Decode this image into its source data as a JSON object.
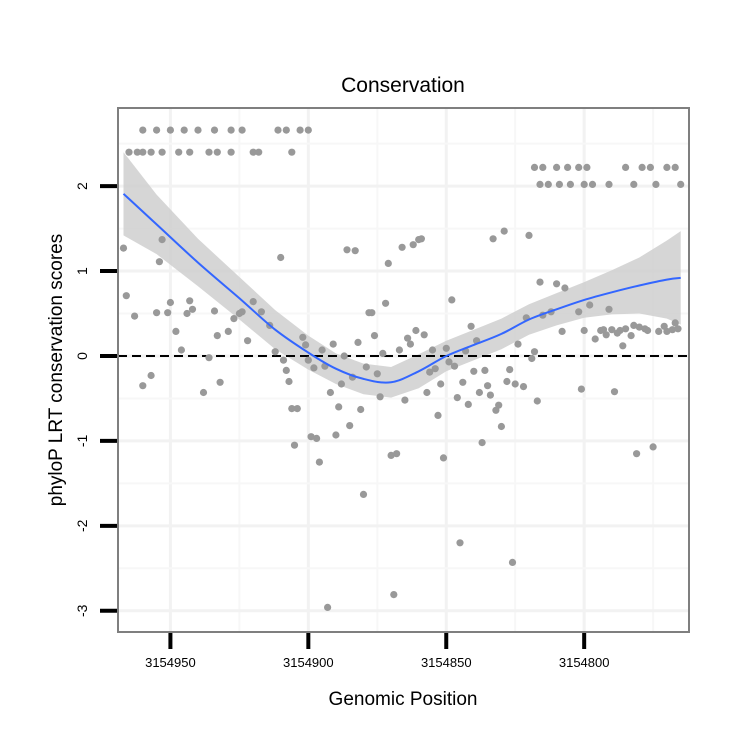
{
  "colors": {
    "panel_border": "#7f7f7f",
    "grid_major": "#f2f2f2",
    "grid_minor": "#f7f7f7",
    "point": "#999999",
    "smooth_line": "#3366ff",
    "ribbon": "#cccccc",
    "zero_line": "#000000"
  },
  "chart_data": {
    "type": "scatter",
    "title": "Conservation",
    "xlabel": "Genomic Position",
    "ylabel": "phyloP LRT conservation scores",
    "x_reversed": true,
    "xlim": [
      3154969,
      3154762
    ],
    "ylim": [
      -3.25,
      2.92
    ],
    "x_ticks": [
      3154950,
      3154900,
      3154850,
      3154800
    ],
    "x_tick_labels": [
      "3154950",
      "3154900",
      "3154850",
      "3154800"
    ],
    "y_ticks": [
      2,
      1,
      0,
      -1,
      -2,
      -3
    ],
    "y_tick_labels": [
      "2",
      "1",
      "0",
      "-1",
      "-2",
      "-3"
    ],
    "grid": true,
    "reference_line": {
      "y": 0,
      "style": "dashed"
    },
    "points": [
      [
        3154965,
        2.4
      ],
      [
        3154962,
        2.4
      ],
      [
        3154960,
        2.4
      ],
      [
        3154957,
        2.4
      ],
      [
        3154953,
        2.4
      ],
      [
        3154947,
        2.4
      ],
      [
        3154943,
        2.4
      ],
      [
        3154936,
        2.4
      ],
      [
        3154933,
        2.4
      ],
      [
        3154928,
        2.4
      ],
      [
        3154920,
        2.4
      ],
      [
        3154918,
        2.4
      ],
      [
        3154906,
        2.4
      ],
      [
        3154960,
        2.66
      ],
      [
        3154955,
        2.66
      ],
      [
        3154950,
        2.66
      ],
      [
        3154945,
        2.66
      ],
      [
        3154940,
        2.66
      ],
      [
        3154934,
        2.66
      ],
      [
        3154928,
        2.66
      ],
      [
        3154924,
        2.66
      ],
      [
        3154911,
        2.66
      ],
      [
        3154908,
        2.66
      ],
      [
        3154903,
        2.66
      ],
      [
        3154900,
        2.66
      ],
      [
        3154967,
        1.27
      ],
      [
        3154966,
        0.71
      ],
      [
        3154963,
        0.47
      ],
      [
        3154960,
        -0.35
      ],
      [
        3154957,
        -0.23
      ],
      [
        3154955,
        0.51
      ],
      [
        3154954,
        1.11
      ],
      [
        3154953,
        1.37
      ],
      [
        3154951,
        0.51
      ],
      [
        3154950,
        0.63
      ],
      [
        3154948,
        0.29
      ],
      [
        3154946,
        0.07
      ],
      [
        3154944,
        0.5
      ],
      [
        3154943,
        0.65
      ],
      [
        3154942,
        0.55
      ],
      [
        3154938,
        -0.43
      ],
      [
        3154936,
        -0.02
      ],
      [
        3154934,
        0.53
      ],
      [
        3154933,
        0.24
      ],
      [
        3154932,
        -0.31
      ],
      [
        3154929,
        0.29
      ],
      [
        3154927,
        0.44
      ],
      [
        3154925,
        0.5
      ],
      [
        3154924,
        0.52
      ],
      [
        3154922,
        0.18
      ],
      [
        3154920,
        0.64
      ],
      [
        3154917,
        0.52
      ],
      [
        3154914,
        0.36
      ],
      [
        3154912,
        0.05
      ],
      [
        3154910,
        1.16
      ],
      [
        3154909,
        -0.05
      ],
      [
        3154908,
        -0.17
      ],
      [
        3154907,
        -0.3
      ],
      [
        3154906,
        -0.62
      ],
      [
        3154905,
        -1.05
      ],
      [
        3154904,
        -0.62
      ],
      [
        3154902,
        0.22
      ],
      [
        3154901,
        0.13
      ],
      [
        3154900,
        -0.05
      ],
      [
        3154899,
        -0.95
      ],
      [
        3154898,
        -0.14
      ],
      [
        3154897,
        -0.97
      ],
      [
        3154896,
        -1.25
      ],
      [
        3154895,
        0.07
      ],
      [
        3154894,
        -0.12
      ],
      [
        3154893,
        -2.96
      ],
      [
        3154892,
        -0.43
      ],
      [
        3154891,
        0.14
      ],
      [
        3154890,
        -0.93
      ],
      [
        3154889,
        -0.6
      ],
      [
        3154888,
        -0.33
      ],
      [
        3154887,
        0.0
      ],
      [
        3154886,
        1.25
      ],
      [
        3154885,
        -0.82
      ],
      [
        3154884,
        -0.25
      ],
      [
        3154883,
        1.24
      ],
      [
        3154882,
        0.16
      ],
      [
        3154881,
        -0.63
      ],
      [
        3154880,
        -1.63
      ],
      [
        3154879,
        -0.13
      ],
      [
        3154878,
        0.51
      ],
      [
        3154877,
        0.51
      ],
      [
        3154876,
        0.24
      ],
      [
        3154875,
        -0.21
      ],
      [
        3154874,
        -0.48
      ],
      [
        3154873,
        0.03
      ],
      [
        3154872,
        0.62
      ],
      [
        3154871,
        1.09
      ],
      [
        3154870,
        -1.17
      ],
      [
        3154869,
        -2.81
      ],
      [
        3154868,
        -1.15
      ],
      [
        3154867,
        0.07
      ],
      [
        3154866,
        1.28
      ],
      [
        3154865,
        -0.52
      ],
      [
        3154864,
        0.21
      ],
      [
        3154863,
        0.14
      ],
      [
        3154862,
        1.31
      ],
      [
        3154861,
        0.3
      ],
      [
        3154860,
        1.37
      ],
      [
        3154859,
        1.38
      ],
      [
        3154858,
        0.25
      ],
      [
        3154857,
        -0.43
      ],
      [
        3154856,
        -0.19
      ],
      [
        3154855,
        0.07
      ],
      [
        3154854,
        -0.15
      ],
      [
        3154853,
        -0.7
      ],
      [
        3154852,
        -0.33
      ],
      [
        3154851,
        -1.2
      ],
      [
        3154850,
        0.09
      ],
      [
        3154849,
        -0.07
      ],
      [
        3154848,
        0.66
      ],
      [
        3154847,
        -0.12
      ],
      [
        3154846,
        -0.49
      ],
      [
        3154845,
        -2.2
      ],
      [
        3154844,
        -0.31
      ],
      [
        3154843,
        0.06
      ],
      [
        3154842,
        -0.57
      ],
      [
        3154841,
        0.35
      ],
      [
        3154840,
        -0.18
      ],
      [
        3154839,
        0.18
      ],
      [
        3154838,
        -0.43
      ],
      [
        3154837,
        -1.02
      ],
      [
        3154836,
        -0.17
      ],
      [
        3154835,
        -0.35
      ],
      [
        3154834,
        -0.46
      ],
      [
        3154833,
        1.38
      ],
      [
        3154832,
        -0.64
      ],
      [
        3154831,
        -0.58
      ],
      [
        3154830,
        -0.83
      ],
      [
        3154829,
        1.47
      ],
      [
        3154828,
        -0.3
      ],
      [
        3154827,
        -0.16
      ],
      [
        3154826,
        -2.43
      ],
      [
        3154825,
        -0.33
      ],
      [
        3154824,
        0.14
      ],
      [
        3154822,
        -0.36
      ],
      [
        3154821,
        0.45
      ],
      [
        3154820,
        1.42
      ],
      [
        3154819,
        -0.03
      ],
      [
        3154818,
        0.05
      ],
      [
        3154817,
        -0.53
      ],
      [
        3154816,
        0.87
      ],
      [
        3154815,
        0.48
      ],
      [
        3154812,
        0.52
      ],
      [
        3154810,
        0.85
      ],
      [
        3154808,
        0.29
      ],
      [
        3154807,
        0.8
      ],
      [
        3154802,
        0.52
      ],
      [
        3154801,
        -0.39
      ],
      [
        3154800,
        0.3
      ],
      [
        3154798,
        0.6
      ],
      [
        3154796,
        0.2
      ],
      [
        3154794,
        0.3
      ],
      [
        3154793,
        0.31
      ],
      [
        3154792,
        0.25
      ],
      [
        3154791,
        0.55
      ],
      [
        3154790,
        0.31
      ],
      [
        3154789,
        -0.42
      ],
      [
        3154788,
        0.27
      ],
      [
        3154787,
        0.3
      ],
      [
        3154786,
        0.12
      ],
      [
        3154785,
        0.32
      ],
      [
        3154783,
        0.24
      ],
      [
        3154782,
        0.36
      ],
      [
        3154781,
        -1.15
      ],
      [
        3154780,
        0.34
      ],
      [
        3154778,
        0.32
      ],
      [
        3154777,
        0.3
      ],
      [
        3154775,
        -1.07
      ],
      [
        3154773,
        0.29
      ],
      [
        3154771,
        0.35
      ],
      [
        3154770,
        0.29
      ],
      [
        3154768,
        0.31
      ],
      [
        3154767,
        0.39
      ],
      [
        3154766,
        0.32
      ],
      [
        3154818,
        2.22
      ],
      [
        3154815,
        2.22
      ],
      [
        3154810,
        2.22
      ],
      [
        3154806,
        2.22
      ],
      [
        3154802,
        2.22
      ],
      [
        3154799,
        2.22
      ],
      [
        3154785,
        2.22
      ],
      [
        3154779,
        2.22
      ],
      [
        3154776,
        2.22
      ],
      [
        3154770,
        2.22
      ],
      [
        3154767,
        2.22
      ],
      [
        3154816,
        2.02
      ],
      [
        3154813,
        2.02
      ],
      [
        3154809,
        2.02
      ],
      [
        3154805,
        2.02
      ],
      [
        3154800,
        2.02
      ],
      [
        3154797,
        2.02
      ],
      [
        3154791,
        2.02
      ],
      [
        3154782,
        2.02
      ],
      [
        3154774,
        2.02
      ],
      [
        3154765,
        2.02
      ]
    ],
    "smooth": {
      "label": "loess",
      "x": [
        3154967,
        3154955,
        3154940,
        3154925,
        3154912,
        3154900,
        3154890,
        3154880,
        3154870,
        3154860,
        3154850,
        3154840,
        3154830,
        3154820,
        3154810,
        3154800,
        3154790,
        3154780,
        3154770,
        3154765
      ],
      "y": [
        1.91,
        1.55,
        1.1,
        0.68,
        0.31,
        0.04,
        -0.15,
        -0.27,
        -0.31,
        -0.18,
        0.0,
        0.13,
        0.26,
        0.43,
        0.55,
        0.66,
        0.75,
        0.83,
        0.9,
        0.92
      ],
      "upper": [
        2.4,
        1.9,
        1.38,
        0.93,
        0.54,
        0.24,
        0.03,
        -0.09,
        -0.13,
        0.02,
        0.18,
        0.31,
        0.44,
        0.61,
        0.74,
        0.87,
        1.01,
        1.16,
        1.36,
        1.47
      ],
      "lower": [
        1.42,
        1.2,
        0.82,
        0.43,
        0.08,
        -0.16,
        -0.33,
        -0.45,
        -0.49,
        -0.38,
        -0.18,
        -0.05,
        0.08,
        0.25,
        0.36,
        0.45,
        0.49,
        0.5,
        0.44,
        0.37
      ]
    }
  }
}
